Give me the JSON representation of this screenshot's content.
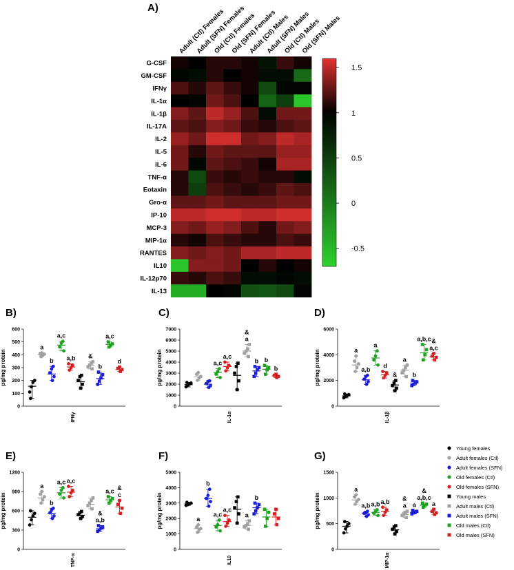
{
  "figure": {
    "panel_a_label": "A)"
  },
  "chart_data": [
    {
      "panel": "A)",
      "type": "heatmap",
      "columns": [
        "Adult (Ctl) Females",
        "Adult (SFN) Females",
        "Old (Ctl) Females",
        "Old (SFN) Females",
        "Adult (Ctl) Males",
        "Adult (SFN) Males",
        "Old (Ctl) Males",
        "Old (SFN) Males"
      ],
      "rows": [
        "G-CSF",
        "GM-CSF",
        "IFNγ",
        "IL-1α",
        "IL-1β",
        "IL-17A",
        "IL-2",
        "IL-5",
        "IL-6",
        "TNF-α",
        "Eotaxin",
        "Gro-α",
        "IP-10",
        "MCP-3",
        "MIP-1α",
        "RANTES",
        "IL10",
        "IL-12p70",
        "IL-13"
      ],
      "values": [
        [
          1.05,
          1.0,
          1.1,
          1.1,
          1.05,
          0.85,
          1.15,
          1.05
        ],
        [
          0.95,
          0.9,
          1.1,
          1.0,
          1.05,
          0.9,
          0.9,
          0.15
        ],
        [
          1.2,
          1.1,
          1.25,
          1.15,
          1.05,
          0.4,
          0.95,
          0.95
        ],
        [
          1.0,
          0.95,
          1.3,
          1.2,
          1.0,
          0.2,
          0.5,
          -0.6
        ],
        [
          1.35,
          1.25,
          1.5,
          1.4,
          1.2,
          0.9,
          1.3,
          1.3
        ],
        [
          1.25,
          1.2,
          1.35,
          1.3,
          1.15,
          1.1,
          1.2,
          1.25
        ],
        [
          1.4,
          1.3,
          1.55,
          1.55,
          1.3,
          1.35,
          1.5,
          1.45
        ],
        [
          1.3,
          1.1,
          1.3,
          1.25,
          1.25,
          1.25,
          1.4,
          1.4
        ],
        [
          1.3,
          0.95,
          1.25,
          1.2,
          1.15,
          1.05,
          1.45,
          1.45
        ],
        [
          1.1,
          0.4,
          1.15,
          1.1,
          1.15,
          1.1,
          1.1,
          0.9
        ],
        [
          1.1,
          0.5,
          1.2,
          1.15,
          1.1,
          1.15,
          1.25,
          1.2
        ],
        [
          1.25,
          1.25,
          1.3,
          1.25,
          1.25,
          1.25,
          1.3,
          1.3
        ],
        [
          1.5,
          1.5,
          1.55,
          1.55,
          1.5,
          1.5,
          1.55,
          1.55
        ],
        [
          1.35,
          1.3,
          1.4,
          1.35,
          1.2,
          1.1,
          1.3,
          1.35
        ],
        [
          1.1,
          1.05,
          1.2,
          1.15,
          1.1,
          1.1,
          1.2,
          1.15
        ],
        [
          1.35,
          1.3,
          1.35,
          1.3,
          1.45,
          1.45,
          1.5,
          1.5
        ],
        [
          -0.6,
          1.35,
          1.35,
          1.3,
          1.0,
          1.1,
          1.0,
          1.05
        ],
        [
          1.15,
          1.1,
          1.2,
          1.15,
          0.9,
          0.9,
          0.95,
          0.9
        ],
        [
          -0.4,
          -0.4,
          1.0,
          0.95,
          0.35,
          0.3,
          0.4,
          0.95
        ]
      ],
      "colorbar": {
        "ticks": [
          1.5,
          1.0,
          0.5,
          0,
          -0.5
        ],
        "min": -0.7,
        "max": 1.6
      },
      "colors": {
        "low": "#2ed22e",
        "mid": "#000000",
        "high": "#e23232"
      }
    },
    {
      "panel": "B)",
      "type": "scatter",
      "xlabel": "IFNγ",
      "ylabel": "pg/mg protein",
      "ylim": [
        0,
        600
      ],
      "yticks": [
        0,
        100,
        200,
        300,
        400,
        500,
        600
      ],
      "groups": [
        {
          "mean": 155,
          "points": [
            110,
            150,
            185,
            200,
            60
          ],
          "letters": ""
        },
        {
          "mean": 400,
          "points": [
            385,
            395,
            405,
            410,
            415
          ],
          "letters": "a"
        },
        {
          "mean": 250,
          "points": [
            200,
            230,
            260,
            290,
            310
          ],
          "letters": "b"
        },
        {
          "mean": 475,
          "points": [
            430,
            460,
            490,
            505
          ],
          "letters": "a,c"
        },
        {
          "mean": 305,
          "points": [
            280,
            300,
            320,
            330
          ],
          "letters": "a,b"
        },
        {
          "mean": 190,
          "points": [
            140,
            170,
            200,
            230,
            240
          ],
          "letters": ""
        },
        {
          "mean": 315,
          "points": [
            290,
            305,
            320,
            335,
            345
          ],
          "letters": "&"
        },
        {
          "mean": 215,
          "points": [
            170,
            195,
            220,
            245,
            265
          ],
          "letters": "b"
        },
        {
          "mean": 480,
          "points": [
            460,
            475,
            485,
            500
          ],
          "letters": "a,c"
        },
        {
          "mean": 285,
          "points": [
            270,
            285,
            295,
            305
          ],
          "letters": "d"
        }
      ]
    },
    {
      "panel": "C)",
      "type": "scatter",
      "xlabel": "IL-1α",
      "ylabel": "pg/mg protein",
      "ylim": [
        0,
        7000
      ],
      "yticks": [
        0,
        1000,
        2000,
        3000,
        4000,
        5000,
        6000,
        7000
      ],
      "groups": [
        {
          "mean": 1950,
          "points": [
            1750,
            1900,
            2000,
            2100,
            2150
          ],
          "letters": ""
        },
        {
          "mean": 2650,
          "points": [
            2350,
            2550,
            2700,
            2900,
            3050
          ],
          "letters": ""
        },
        {
          "mean": 2000,
          "points": [
            1700,
            1850,
            2050,
            2250,
            2300
          ],
          "letters": ""
        },
        {
          "mean": 3050,
          "points": [
            2600,
            2900,
            3150,
            3400
          ],
          "letters": "a,c"
        },
        {
          "mean": 3600,
          "points": [
            3200,
            3500,
            3700,
            4000
          ],
          "letters": "a,c"
        },
        {
          "mean": 2800,
          "points": [
            1500,
            2300,
            3000,
            3600,
            3900
          ],
          "letters": ""
        },
        {
          "mean": 5000,
          "points": [
            4500,
            4800,
            5000,
            5200,
            5600
          ],
          "letters": "&\na"
        },
        {
          "mean": 3200,
          "points": [
            2700,
            3000,
            3300,
            3500,
            3600
          ],
          "letters": "b"
        },
        {
          "mean": 3350,
          "points": [
            2900,
            3300,
            3500,
            3700
          ],
          "letters": "b"
        },
        {
          "mean": 2750,
          "points": [
            2600,
            2700,
            2800,
            2900
          ],
          "letters": "b"
        }
      ]
    },
    {
      "panel": "D)",
      "type": "scatter",
      "xlabel": "IL-1β",
      "ylabel": "pg/mg protein",
      "ylim": [
        0,
        6000
      ],
      "yticks": [
        0,
        2000,
        4000,
        6000
      ],
      "groups": [
        {
          "mean": 800,
          "points": [
            650,
            750,
            820,
            900,
            950
          ],
          "letters": ""
        },
        {
          "mean": 3200,
          "points": [
            2700,
            3000,
            3300,
            3500,
            3900
          ],
          "letters": "a"
        },
        {
          "mean": 2050,
          "points": [
            1700,
            1900,
            2100,
            2300,
            2400
          ],
          "letters": "a,b"
        },
        {
          "mean": 3750,
          "points": [
            3200,
            3600,
            3900,
            4300
          ],
          "letters": "a"
        },
        {
          "mean": 2450,
          "points": [
            2200,
            2400,
            2600,
            2700
          ],
          "letters": "d"
        },
        {
          "mean": 1650,
          "points": [
            1200,
            1400,
            1600,
            1800,
            2000
          ],
          "letters": "&"
        },
        {
          "mean": 2800,
          "points": [
            2300,
            2600,
            2800,
            3000,
            3200
          ],
          "letters": "a"
        },
        {
          "mean": 1800,
          "points": [
            1600,
            1700,
            1800,
            1900,
            2000
          ],
          "letters": "b"
        },
        {
          "mean": 4150,
          "points": [
            3600,
            4000,
            4400,
            4800
          ],
          "letters": "a,b,c"
        },
        {
          "mean": 3850,
          "points": [
            3600,
            3800,
            3900,
            4100
          ],
          "letters": "&\na,c"
        }
      ]
    },
    {
      "panel": "E)",
      "type": "scatter",
      "xlabel": "TNF-α",
      "ylabel": "pg/mg protein",
      "ylim": [
        0,
        1200
      ],
      "yticks": [
        0,
        300,
        600,
        900,
        1200
      ],
      "groups": [
        {
          "mean": 500,
          "points": [
            380,
            460,
            520,
            560,
            600
          ],
          "letters": ""
        },
        {
          "mean": 800,
          "points": [
            720,
            770,
            820,
            860,
            900
          ],
          "letters": "a"
        },
        {
          "mean": 560,
          "points": [
            480,
            520,
            570,
            610,
            640
          ],
          "letters": "b"
        },
        {
          "mean": 880,
          "points": [
            800,
            860,
            920,
            960
          ],
          "letters": "a,c"
        },
        {
          "mean": 890,
          "points": [
            820,
            880,
            920,
            980
          ],
          "letters": "a,c"
        },
        {
          "mean": 530,
          "points": [
            480,
            510,
            540,
            570,
            590
          ],
          "letters": ""
        },
        {
          "mean": 700,
          "points": [
            630,
            680,
            720,
            760,
            800
          ],
          "letters": ""
        },
        {
          "mean": 320,
          "points": [
            280,
            300,
            330,
            350,
            370
          ],
          "letters": "&\na,b"
        },
        {
          "mean": 770,
          "points": [
            720,
            760,
            790,
            820
          ],
          "letters": "a,c"
        },
        {
          "mean": 660,
          "points": [
            560,
            640,
            700,
            760
          ],
          "letters": "&\nc"
        }
      ]
    },
    {
      "panel": "F)",
      "type": "scatter",
      "xlabel": "IL10",
      "ylabel": "pg/mg protein",
      "ylim": [
        0,
        5000
      ],
      "yticks": [
        0,
        1000,
        2000,
        3000,
        4000,
        5000
      ],
      "groups": [
        {
          "mean": 2950,
          "points": [
            2850,
            2900,
            2950,
            3000,
            3050
          ],
          "letters": ""
        },
        {
          "mean": 1350,
          "points": [
            1100,
            1250,
            1350,
            1450,
            1600
          ],
          "letters": "a"
        },
        {
          "mean": 3300,
          "points": [
            2800,
            3100,
            3300,
            3500,
            3900
          ],
          "letters": "b"
        },
        {
          "mean": 1550,
          "points": [
            1200,
            1450,
            1600,
            1900
          ],
          "letters": "a,c"
        },
        {
          "mean": 1800,
          "points": [
            1500,
            1700,
            1900,
            2200
          ],
          "letters": "a,c"
        },
        {
          "mean": 2600,
          "points": [
            1700,
            2300,
            2700,
            3100,
            3400
          ],
          "letters": ""
        },
        {
          "mean": 1550,
          "points": [
            1300,
            1450,
            1550,
            1650,
            1850
          ],
          "letters": "a"
        },
        {
          "mean": 2700,
          "points": [
            2300,
            2500,
            2700,
            2900,
            3000
          ],
          "letters": "b"
        },
        {
          "mean": 2100,
          "points": [
            1500,
            2000,
            2400,
            2600
          ],
          "letters": ""
        },
        {
          "mean": 2100,
          "points": [
            1600,
            2000,
            2300,
            2600
          ],
          "letters": ""
        }
      ]
    },
    {
      "panel": "G)",
      "type": "scatter",
      "xlabel": "MIP-1α",
      "ylabel": "pg/mg protein",
      "ylim": [
        0,
        1500
      ],
      "yticks": [
        0,
        500,
        1000,
        1500
      ],
      "groups": [
        {
          "mean": 450,
          "points": [
            320,
            400,
            450,
            500,
            540
          ],
          "letters": ""
        },
        {
          "mean": 960,
          "points": [
            880,
            930,
            970,
            1020,
            1060
          ],
          "letters": "a"
        },
        {
          "mean": 690,
          "points": [
            640,
            670,
            700,
            720,
            740
          ],
          "letters": "a,b"
        },
        {
          "mean": 720,
          "points": [
            660,
            700,
            740,
            770
          ],
          "letters": "a,b"
        },
        {
          "mean": 740,
          "points": [
            660,
            720,
            770,
            820
          ],
          "letters": "a,b"
        },
        {
          "mean": 380,
          "points": [
            300,
            350,
            390,
            430,
            460
          ],
          "letters": ""
        },
        {
          "mean": 680,
          "points": [
            620,
            660,
            690,
            720,
            740
          ],
          "letters": "&\na"
        },
        {
          "mean": 720,
          "points": [
            690,
            710,
            720,
            740,
            760
          ],
          "letters": "a"
        },
        {
          "mean": 860,
          "points": [
            820,
            850,
            880,
            900
          ],
          "letters": "&\na,b,c"
        },
        {
          "mean": 730,
          "points": [
            680,
            710,
            740,
            780
          ],
          "letters": "a"
        }
      ]
    }
  ],
  "legend": {
    "items": [
      {
        "label": "Young females",
        "color": "#000000",
        "shape": "circle"
      },
      {
        "label": "Adult females (Ctl)",
        "color": "#a0a0a0",
        "shape": "circle"
      },
      {
        "label": "Adult females (SFN)",
        "color": "#1c1cd6",
        "shape": "circle"
      },
      {
        "label": "Old females (Ctl)",
        "color": "#20a020",
        "shape": "circle"
      },
      {
        "label": "Old females (SFN)",
        "color": "#d42020",
        "shape": "circle"
      },
      {
        "label": "Young males",
        "color": "#000000",
        "shape": "square"
      },
      {
        "label": "Adult males (Ctl)",
        "color": "#a0a0a0",
        "shape": "square"
      },
      {
        "label": "Adult males (SFN)",
        "color": "#1c1cd6",
        "shape": "square"
      },
      {
        "label": "Old males (Ctl)",
        "color": "#20a020",
        "shape": "square"
      },
      {
        "label": "Old males (SFN)",
        "color": "#d42020",
        "shape": "square"
      }
    ]
  }
}
